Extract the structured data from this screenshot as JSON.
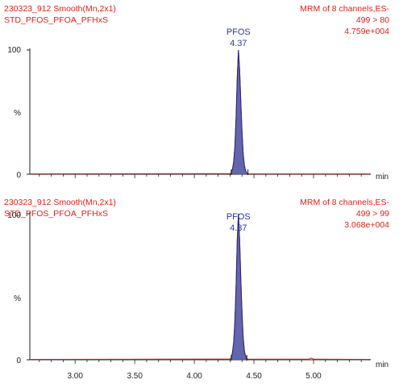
{
  "colors": {
    "header_text": "#e0201a",
    "baseline": "#e0201a",
    "peak_fill": "#5a5ea8",
    "peak_stroke": "#1f2a80",
    "peak_label": "#2a3aa0",
    "axis": "#222222",
    "integration_mark": "#111111"
  },
  "chart_data": [
    {
      "type": "line",
      "header_left": [
        "230323_912 Smooth(Mn,2x1)",
        "STD_PFOS_PFOA_PFHxS"
      ],
      "header_right": [
        "MRM of 8 channels,ES-",
        "499 > 80",
        "4.759e+004"
      ],
      "y_ticks": [
        "100",
        "%",
        "0"
      ],
      "x_unit": "min",
      "ylim": [
        0,
        100
      ],
      "xlim": [
        2.62,
        5.48
      ],
      "peak": {
        "label": "PFOS",
        "rt": "4.37",
        "apex_x": 4.37,
        "start_x": 4.31,
        "end_x": 4.45,
        "height": 100
      },
      "x": [
        2.62,
        4.3,
        4.31,
        4.32,
        4.33,
        4.34,
        4.35,
        4.36,
        4.37,
        4.38,
        4.39,
        4.4,
        4.41,
        4.42,
        4.43,
        4.44,
        4.45,
        5.48
      ],
      "y": [
        0.3,
        0.5,
        1.5,
        4,
        10,
        22,
        45,
        78,
        100,
        84,
        58,
        34,
        16,
        7,
        3,
        1,
        0.4,
        0.3
      ]
    },
    {
      "type": "line",
      "header_left": [
        "230323_912 Smooth(Mn,2x1)",
        "STD_PFOS_PFOA_PFHxS"
      ],
      "header_right": [
        "MRM of 8 channels,ES-",
        "499 > 99",
        "3.068e+004"
      ],
      "y_ticks": [
        "100",
        "%",
        "0"
      ],
      "x_unit": "min",
      "ylim": [
        0,
        100
      ],
      "xlim": [
        2.62,
        5.48
      ],
      "peak": {
        "label": "PFOS",
        "rt": "4.37",
        "apex_x": 4.37,
        "start_x": 4.31,
        "end_x": 4.44,
        "height": 100
      },
      "x_ticks": [
        "3.00",
        "3.50",
        "4.00",
        "4.50",
        "5.00"
      ],
      "x_tick_values": [
        3.0,
        3.5,
        4.0,
        4.5,
        5.0
      ],
      "x": [
        2.62,
        4.3,
        4.31,
        4.32,
        4.33,
        4.34,
        4.35,
        4.36,
        4.37,
        4.38,
        4.39,
        4.4,
        4.41,
        4.42,
        4.43,
        4.44,
        4.45,
        4.96,
        4.98,
        5.0,
        5.48
      ],
      "y": [
        0.3,
        0.5,
        1.5,
        5,
        12,
        26,
        50,
        82,
        100,
        82,
        55,
        32,
        15,
        6,
        2.5,
        1,
        0.4,
        0.4,
        1.2,
        0.4,
        0.3
      ]
    }
  ]
}
